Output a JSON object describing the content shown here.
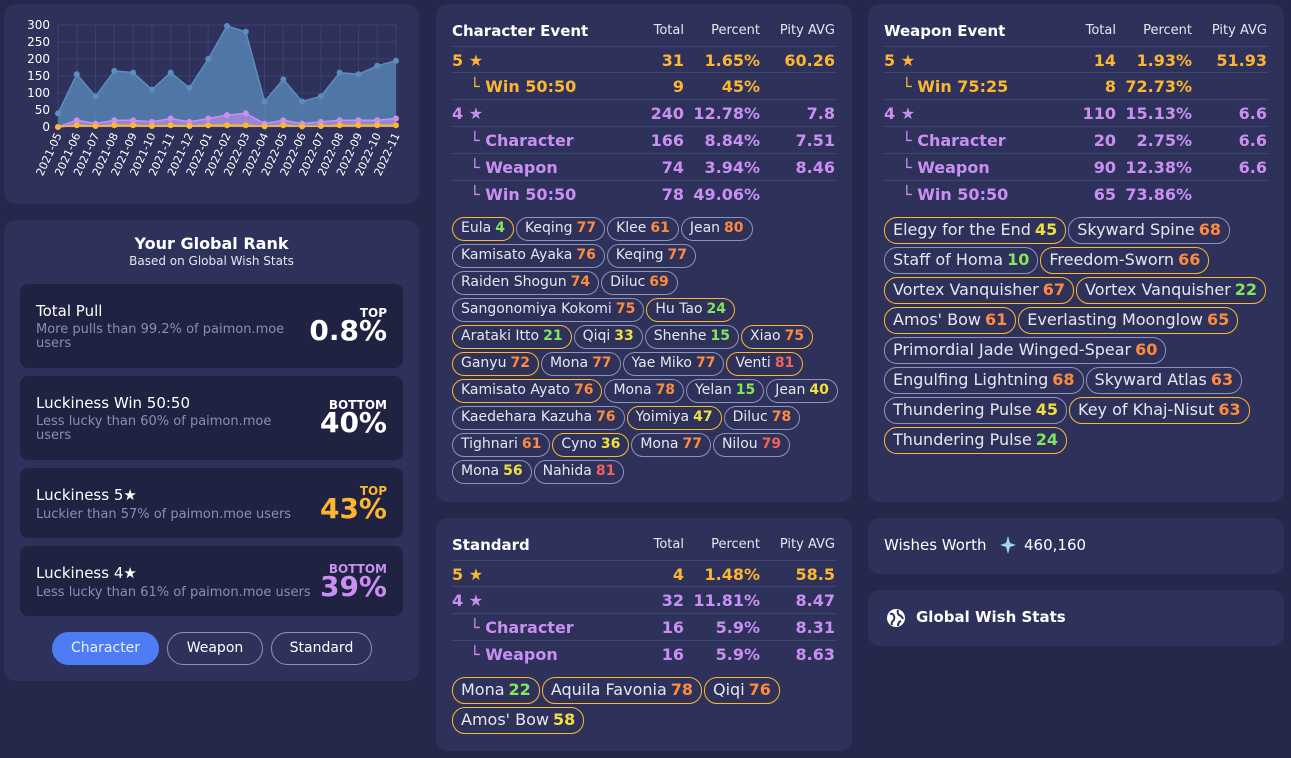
{
  "chart_data": {
    "type": "area",
    "categories": [
      "2021-05",
      "2021-06",
      "2021-07",
      "2021-08",
      "2021-09",
      "2021-10",
      "2021-11",
      "2021-12",
      "2022-01",
      "2022-02",
      "2022-03",
      "2022-04",
      "2022-05",
      "2022-06",
      "2022-07",
      "2022-08",
      "2022-09",
      "2022-10",
      "2022-11"
    ],
    "series": [
      {
        "values": [
          40,
          155,
          90,
          165,
          160,
          110,
          160,
          115,
          200,
          297,
          280,
          75,
          140,
          75,
          90,
          160,
          155,
          180,
          195
        ],
        "color": "#5b8dbf"
      },
      {
        "values": [
          0,
          20,
          10,
          20,
          20,
          15,
          25,
          15,
          25,
          35,
          40,
          10,
          20,
          10,
          15,
          20,
          20,
          20,
          25
        ],
        "color": "#c98ff2"
      },
      {
        "values": [
          0,
          5,
          3,
          5,
          5,
          3,
          5,
          3,
          5,
          5,
          5,
          2,
          5,
          2,
          3,
          5,
          5,
          5,
          5
        ],
        "color": "#fcb62f"
      }
    ],
    "ylim": [
      0,
      300
    ],
    "yticks": [
      "0",
      "50",
      "100",
      "150",
      "200",
      "250",
      "300"
    ]
  },
  "rank": {
    "title": "Your Global Rank",
    "subtitle": "Based on Global Wish Stats",
    "stats": [
      {
        "label": "Total Pull",
        "desc": "More pulls than 99.2% of paimon.moe users",
        "tag": "TOP",
        "value": "0.8%",
        "color": "#ffffff"
      },
      {
        "label": "Luckiness Win 50:50",
        "desc": "Less lucky than 60% of paimon.moe users",
        "tag": "BOTTOM",
        "value": "40%",
        "color": "#ffffff"
      },
      {
        "label": "Luckiness 5★",
        "desc": "Luckier than 57% of paimon.moe users",
        "tag": "TOP",
        "value": "43%",
        "color": "#fcb62f"
      },
      {
        "label": "Luckiness 4★",
        "desc": "Less lucky than 61% of paimon.moe users",
        "tag": "BOTTOM",
        "value": "39%",
        "color": "#c98ff2"
      }
    ],
    "tabs": [
      "Character",
      "Weapon",
      "Standard"
    ]
  },
  "character": {
    "title": "Character Event",
    "cols": [
      "Total",
      "Percent",
      "Pity AVG"
    ],
    "rows": [
      {
        "label": "5 ★",
        "total": "31",
        "percent": "1.65%",
        "pity": "60.26",
        "color": "gold",
        "indent": false
      },
      {
        "label": "└ Win 50:50",
        "total": "9",
        "percent": "45%",
        "pity": "",
        "color": "gold",
        "indent": true
      },
      {
        "label": "4 ★",
        "total": "240",
        "percent": "12.78%",
        "pity": "7.8",
        "color": "purple",
        "indent": false
      },
      {
        "label": "└ Character",
        "total": "166",
        "percent": "8.84%",
        "pity": "7.51",
        "color": "purple",
        "indent": true
      },
      {
        "label": "└ Weapon",
        "total": "74",
        "percent": "3.94%",
        "pity": "8.46",
        "color": "purple",
        "indent": true
      },
      {
        "label": "└ Win 50:50",
        "total": "78",
        "percent": "49.06%",
        "pity": "",
        "color": "purple",
        "indent": true
      }
    ],
    "chips": [
      {
        "name": "Eula",
        "pity": "4",
        "pc": "p-green",
        "gold": true
      },
      {
        "name": "Keqing",
        "pity": "77",
        "pc": "p-orange",
        "gold": false
      },
      {
        "name": "Klee",
        "pity": "61",
        "pc": "p-orange",
        "gold": false
      },
      {
        "name": "Jean",
        "pity": "80",
        "pc": "p-orange",
        "gold": false
      },
      {
        "name": "Kamisato Ayaka",
        "pity": "76",
        "pc": "p-orange",
        "gold": false
      },
      {
        "name": "Keqing",
        "pity": "77",
        "pc": "p-orange",
        "gold": false
      },
      {
        "name": "Raiden Shogun",
        "pity": "74",
        "pc": "p-orange",
        "gold": false
      },
      {
        "name": "Diluc",
        "pity": "69",
        "pc": "p-orange",
        "gold": false
      },
      {
        "name": "Sangonomiya Kokomi",
        "pity": "75",
        "pc": "p-orange",
        "gold": false
      },
      {
        "name": "Hu Tao",
        "pity": "24",
        "pc": "p-green",
        "gold": true
      },
      {
        "name": "Arataki Itto",
        "pity": "21",
        "pc": "p-green",
        "gold": true
      },
      {
        "name": "Qiqi",
        "pity": "33",
        "pc": "p-yellow",
        "gold": false
      },
      {
        "name": "Shenhe",
        "pity": "15",
        "pc": "p-green",
        "gold": false
      },
      {
        "name": "Xiao",
        "pity": "75",
        "pc": "p-orange",
        "gold": true
      },
      {
        "name": "Ganyu",
        "pity": "72",
        "pc": "p-orange",
        "gold": true
      },
      {
        "name": "Mona",
        "pity": "77",
        "pc": "p-orange",
        "gold": false
      },
      {
        "name": "Yae Miko",
        "pity": "77",
        "pc": "p-orange",
        "gold": false
      },
      {
        "name": "Venti",
        "pity": "81",
        "pc": "p-red",
        "gold": true
      },
      {
        "name": "Kamisato Ayato",
        "pity": "76",
        "pc": "p-orange",
        "gold": true
      },
      {
        "name": "Mona",
        "pity": "78",
        "pc": "p-orange",
        "gold": false
      },
      {
        "name": "Yelan",
        "pity": "15",
        "pc": "p-green",
        "gold": false
      },
      {
        "name": "Jean",
        "pity": "40",
        "pc": "p-yellow",
        "gold": false
      },
      {
        "name": "Kaedehara Kazuha",
        "pity": "76",
        "pc": "p-orange",
        "gold": false
      },
      {
        "name": "Yoimiya",
        "pity": "47",
        "pc": "p-yellow",
        "gold": true
      },
      {
        "name": "Diluc",
        "pity": "78",
        "pc": "p-orange",
        "gold": false
      },
      {
        "name": "Tighnari",
        "pity": "61",
        "pc": "p-orange",
        "gold": false
      },
      {
        "name": "Cyno",
        "pity": "36",
        "pc": "p-yellow",
        "gold": true
      },
      {
        "name": "Mona",
        "pity": "77",
        "pc": "p-orange",
        "gold": false
      },
      {
        "name": "Nilou",
        "pity": "79",
        "pc": "p-red",
        "gold": false
      },
      {
        "name": "Mona",
        "pity": "56",
        "pc": "p-yellow",
        "gold": false
      },
      {
        "name": "Nahida",
        "pity": "81",
        "pc": "p-red",
        "gold": false
      }
    ]
  },
  "weapon": {
    "title": "Weapon Event",
    "cols": [
      "Total",
      "Percent",
      "Pity AVG"
    ],
    "rows": [
      {
        "label": "5 ★",
        "total": "14",
        "percent": "1.93%",
        "pity": "51.93",
        "color": "gold",
        "indent": false
      },
      {
        "label": "└ Win 75:25",
        "total": "8",
        "percent": "72.73%",
        "pity": "",
        "color": "gold",
        "indent": true
      },
      {
        "label": "4 ★",
        "total": "110",
        "percent": "15.13%",
        "pity": "6.6",
        "color": "purple",
        "indent": false
      },
      {
        "label": "└ Character",
        "total": "20",
        "percent": "2.75%",
        "pity": "6.6",
        "color": "purple",
        "indent": true
      },
      {
        "label": "└ Weapon",
        "total": "90",
        "percent": "12.38%",
        "pity": "6.6",
        "color": "purple",
        "indent": true
      },
      {
        "label": "└ Win 50:50",
        "total": "65",
        "percent": "73.86%",
        "pity": "",
        "color": "purple",
        "indent": true
      }
    ],
    "chips": [
      {
        "name": "Elegy for the End",
        "pity": "45",
        "pc": "p-yellow",
        "gold": true
      },
      {
        "name": "Skyward Spine",
        "pity": "68",
        "pc": "p-orange",
        "gold": false
      },
      {
        "name": "Staff of Homa",
        "pity": "10",
        "pc": "p-green",
        "gold": false
      },
      {
        "name": "Freedom-Sworn",
        "pity": "66",
        "pc": "p-orange",
        "gold": true
      },
      {
        "name": "Vortex Vanquisher",
        "pity": "67",
        "pc": "p-orange",
        "gold": true
      },
      {
        "name": "Vortex Vanquisher",
        "pity": "22",
        "pc": "p-green",
        "gold": true
      },
      {
        "name": "Amos' Bow",
        "pity": "61",
        "pc": "p-orange",
        "gold": true
      },
      {
        "name": "Everlasting Moonglow",
        "pity": "65",
        "pc": "p-orange",
        "gold": true
      },
      {
        "name": "Primordial Jade Winged-Spear",
        "pity": "60",
        "pc": "p-orange",
        "gold": false
      },
      {
        "name": "Engulfing Lightning",
        "pity": "68",
        "pc": "p-orange",
        "gold": false
      },
      {
        "name": "Skyward Atlas",
        "pity": "63",
        "pc": "p-orange",
        "gold": false
      },
      {
        "name": "Thundering Pulse",
        "pity": "45",
        "pc": "p-yellow",
        "gold": false
      },
      {
        "name": "Key of Khaj-Nisut",
        "pity": "63",
        "pc": "p-orange",
        "gold": true
      },
      {
        "name": "Thundering Pulse",
        "pity": "24",
        "pc": "p-green",
        "gold": true
      }
    ]
  },
  "standard": {
    "title": "Standard",
    "cols": [
      "Total",
      "Percent",
      "Pity AVG"
    ],
    "rows": [
      {
        "label": "5 ★",
        "total": "4",
        "percent": "1.48%",
        "pity": "58.5",
        "color": "gold",
        "indent": false
      },
      {
        "label": "4 ★",
        "total": "32",
        "percent": "11.81%",
        "pity": "8.47",
        "color": "purple",
        "indent": false
      },
      {
        "label": "└ Character",
        "total": "16",
        "percent": "5.9%",
        "pity": "8.31",
        "color": "purple",
        "indent": true
      },
      {
        "label": "└ Weapon",
        "total": "16",
        "percent": "5.9%",
        "pity": "8.63",
        "color": "purple",
        "indent": true
      }
    ],
    "chips": [
      {
        "name": "Mona",
        "pity": "22",
        "pc": "p-green",
        "gold": true
      },
      {
        "name": "Aquila Favonia",
        "pity": "78",
        "pc": "p-orange",
        "gold": true
      },
      {
        "name": "Qiqi",
        "pity": "76",
        "pc": "p-orange",
        "gold": true
      },
      {
        "name": "Amos' Bow",
        "pity": "58",
        "pc": "p-yellow",
        "gold": true
      }
    ]
  },
  "worth": {
    "label": "Wishes Worth",
    "value": "460,160",
    "icon": "primogem-icon"
  },
  "global": {
    "label": "Global Wish Stats",
    "icon": "globe-icon"
  }
}
